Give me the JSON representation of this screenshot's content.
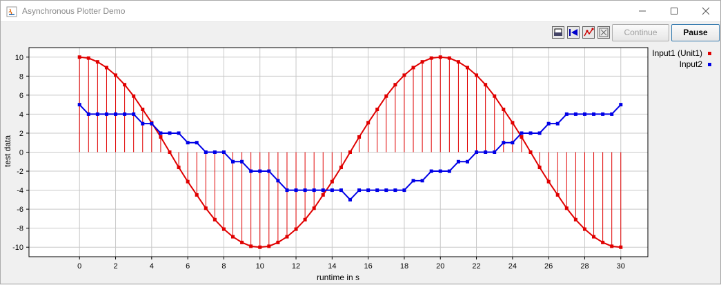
{
  "window": {
    "title": "Asynchronous Plotter Demo",
    "minimize_icon": "minimize-icon",
    "maximize_icon": "maximize-icon",
    "close_icon": "close-icon"
  },
  "toolbar": {
    "icons": [
      "print-icon",
      "reset-view-icon",
      "markers-icon",
      "fit-view-icon"
    ],
    "continue_label": "Continue",
    "continue_enabled": false,
    "pause_label": "Pause"
  },
  "colors": {
    "input1": "#e00000",
    "input2": "#0000e6",
    "grid": "#c8c8c8"
  },
  "chart_data": {
    "type": "line",
    "xlabel": "runtime in s",
    "ylabel": "test data",
    "xlim": [
      -2.8,
      31.5
    ],
    "ylim": [
      -11,
      11
    ],
    "xticks": [
      "0",
      "2",
      "4",
      "6",
      "8",
      "10",
      "12",
      "14",
      "16",
      "18",
      "20",
      "22",
      "24",
      "26",
      "28",
      "30"
    ],
    "yticks": [
      "10",
      "8",
      "6",
      "4",
      "2",
      "0",
      "-2",
      "-4",
      "-6",
      "-8",
      "-10"
    ],
    "grid": true,
    "legend_position": "right",
    "x": [
      0,
      0.5,
      1,
      1.5,
      2,
      2.5,
      3,
      3.5,
      4,
      4.5,
      5,
      5.5,
      6,
      6.5,
      7,
      7.5,
      8,
      8.5,
      9,
      9.5,
      10,
      10.5,
      11,
      11.5,
      12,
      12.5,
      13,
      13.5,
      14,
      14.5,
      15,
      15.5,
      16,
      16.5,
      17,
      17.5,
      18,
      18.5,
      19,
      19.5,
      20,
      20.5,
      21,
      21.5,
      22,
      22.5,
      23,
      23.5,
      24,
      24.5,
      25,
      25.5,
      26,
      26.5,
      27,
      27.5,
      28,
      28.5,
      29,
      29.5,
      30
    ],
    "series": [
      {
        "name": "Input1 (Unit1)",
        "style": "line-with-stems",
        "values": [
          10,
          9.9,
          9.5,
          8.9,
          8.1,
          7.1,
          5.9,
          4.5,
          3.1,
          1.6,
          0,
          -1.6,
          -3.1,
          -4.5,
          -5.9,
          -7.1,
          -8.1,
          -8.9,
          -9.5,
          -9.9,
          -10,
          -9.9,
          -9.5,
          -8.9,
          -8.1,
          -7.1,
          -5.9,
          -4.5,
          -3.1,
          -1.6,
          0,
          1.6,
          3.1,
          4.5,
          5.9,
          7.1,
          8.1,
          8.9,
          9.5,
          9.9,
          10,
          9.9,
          9.5,
          8.9,
          8.1,
          7.1,
          5.9,
          4.5,
          3.1,
          1.6,
          0,
          -1.6,
          -3.1,
          -4.5,
          -5.9,
          -7.1,
          -8.1,
          -8.9,
          -9.5,
          -9.9,
          -10
        ]
      },
      {
        "name": "Input2",
        "style": "line",
        "values": [
          5,
          4,
          4,
          4,
          4,
          4,
          4,
          3,
          3,
          2,
          2,
          2,
          1,
          1,
          0,
          0,
          0,
          -1,
          -1,
          -2,
          -2,
          -2,
          -3,
          -4,
          -4,
          -4,
          -4,
          -4,
          -4,
          -4,
          -5,
          -4,
          -4,
          -4,
          -4,
          -4,
          -4,
          -3,
          -3,
          -2,
          -2,
          -2,
          -1,
          -1,
          0,
          0,
          0,
          1,
          1,
          2,
          2,
          2,
          3,
          3,
          4,
          4,
          4,
          4,
          4,
          4,
          5
        ]
      }
    ]
  }
}
